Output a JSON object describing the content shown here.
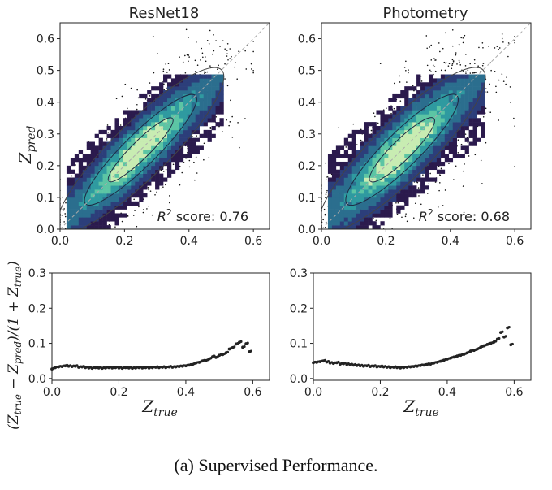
{
  "figure": {
    "caption": "(a) Supervised Performance."
  },
  "chart_data": [
    {
      "type": "scatter",
      "panel": "top-left",
      "title": "ResNet18",
      "xlabel": "",
      "ylabel_base": "Z",
      "ylabel_sub": "pred",
      "xlim": [
        0,
        0.65
      ],
      "ylim": [
        0,
        0.65
      ],
      "xticks": [
        0.0,
        0.2,
        0.4,
        0.6
      ],
      "yticks": [
        0.0,
        0.1,
        0.2,
        0.3,
        0.4,
        0.5,
        0.6
      ],
      "xtick_labels": [
        "0.0",
        "0.2",
        "0.4",
        "0.6"
      ],
      "ytick_labels": [
        "0.0",
        "0.1",
        "0.2",
        "0.3",
        "0.4",
        "0.5",
        "0.6"
      ],
      "annotation_prefix": "R",
      "annotation_sup": "2",
      "annotation_text": " score: 0.76",
      "r2": 0.76,
      "spread": 0.085,
      "diagonal": "dashed y = x",
      "colormap": [
        "#2b1a4d",
        "#2c3e7a",
        "#2b6e8e",
        "#2f9aa0",
        "#5cc5a4",
        "#c8ecb2"
      ]
    },
    {
      "type": "scatter",
      "panel": "top-right",
      "title": "Photometry",
      "xlabel": "",
      "xlim": [
        0,
        0.65
      ],
      "ylim": [
        0,
        0.65
      ],
      "xticks": [
        0.0,
        0.2,
        0.4,
        0.6
      ],
      "yticks": [
        0.0,
        0.1,
        0.2,
        0.3,
        0.4,
        0.5,
        0.6
      ],
      "xtick_labels": [
        "0.0",
        "0.2",
        "0.4",
        "0.6"
      ],
      "ytick_labels": [
        "0.0",
        "0.1",
        "0.2",
        "0.3",
        "0.4",
        "0.5",
        "0.6"
      ],
      "annotation_prefix": "R",
      "annotation_sup": "2",
      "annotation_text": " score: 0.68",
      "r2": 0.68,
      "spread": 0.1,
      "diagonal": "dashed y = x",
      "colormap": [
        "#2b1a4d",
        "#2c3e7a",
        "#2b6e8e",
        "#2f9aa0",
        "#5cc5a4",
        "#c8ecb2"
      ]
    },
    {
      "type": "scatter",
      "panel": "bottom-left",
      "xlabel_base": "Z",
      "xlabel_sub": "true",
      "ylabel": "(Ztrue − Zpred)/(1 + Ztrue)",
      "ylabel_parts": [
        "(",
        "Z",
        "true",
        " − ",
        "Z",
        "pred",
        ")/(1 + ",
        "Z",
        "true",
        ")"
      ],
      "xlim": [
        0,
        0.65
      ],
      "ylim": [
        -0.005,
        0.3
      ],
      "xticks": [
        0.0,
        0.2,
        0.4,
        0.6
      ],
      "yticks": [
        0.0,
        0.1,
        0.2,
        0.3
      ],
      "xtick_labels": [
        "0.0",
        "0.2",
        "0.4",
        "0.6"
      ],
      "ytick_labels": [
        "0.0",
        "0.1",
        "0.2",
        "0.3"
      ],
      "series": [
        {
          "name": "ResNet18",
          "x": [
            0.0,
            0.01,
            0.02,
            0.03,
            0.04,
            0.05,
            0.06,
            0.07,
            0.08,
            0.09,
            0.1,
            0.11,
            0.12,
            0.13,
            0.14,
            0.15,
            0.16,
            0.17,
            0.18,
            0.19,
            0.2,
            0.21,
            0.22,
            0.23,
            0.24,
            0.25,
            0.26,
            0.27,
            0.28,
            0.29,
            0.3,
            0.31,
            0.32,
            0.33,
            0.34,
            0.35,
            0.36,
            0.37,
            0.38,
            0.39,
            0.4,
            0.41,
            0.42,
            0.43,
            0.44,
            0.45,
            0.46,
            0.47,
            0.48,
            0.49,
            0.5,
            0.51,
            0.52,
            0.53,
            0.54,
            0.55,
            0.56,
            0.57,
            0.58,
            0.59
          ],
          "y": [
            0.027,
            0.031,
            0.033,
            0.034,
            0.036,
            0.035,
            0.034,
            0.035,
            0.032,
            0.033,
            0.031,
            0.03,
            0.029,
            0.031,
            0.03,
            0.029,
            0.03,
            0.031,
            0.03,
            0.031,
            0.03,
            0.029,
            0.031,
            0.03,
            0.029,
            0.03,
            0.031,
            0.03,
            0.031,
            0.03,
            0.031,
            0.032,
            0.031,
            0.032,
            0.031,
            0.033,
            0.032,
            0.033,
            0.034,
            0.035,
            0.036,
            0.038,
            0.04,
            0.044,
            0.046,
            0.05,
            0.051,
            0.056,
            0.062,
            0.06,
            0.066,
            0.068,
            0.073,
            0.084,
            0.088,
            0.098,
            0.103,
            0.089,
            0.099,
            0.076
          ]
        }
      ]
    },
    {
      "type": "scatter",
      "panel": "bottom-right",
      "xlabel_base": "Z",
      "xlabel_sub": "true",
      "xlim": [
        0,
        0.65
      ],
      "ylim": [
        -0.005,
        0.3
      ],
      "xticks": [
        0.0,
        0.2,
        0.4,
        0.6
      ],
      "yticks": [
        0.0,
        0.1,
        0.2,
        0.3
      ],
      "xtick_labels": [
        "0.0",
        "0.2",
        "0.4",
        "0.6"
      ],
      "ytick_labels": [
        "0.0",
        "0.1",
        "0.2",
        "0.3"
      ],
      "series": [
        {
          "name": "Photometry",
          "x": [
            0.0,
            0.01,
            0.02,
            0.03,
            0.04,
            0.05,
            0.06,
            0.07,
            0.08,
            0.09,
            0.1,
            0.11,
            0.12,
            0.13,
            0.14,
            0.15,
            0.16,
            0.17,
            0.18,
            0.19,
            0.2,
            0.21,
            0.22,
            0.23,
            0.24,
            0.25,
            0.26,
            0.27,
            0.28,
            0.29,
            0.3,
            0.31,
            0.32,
            0.33,
            0.34,
            0.35,
            0.36,
            0.37,
            0.38,
            0.39,
            0.4,
            0.41,
            0.42,
            0.43,
            0.44,
            0.45,
            0.46,
            0.47,
            0.48,
            0.49,
            0.5,
            0.51,
            0.52,
            0.53,
            0.54,
            0.55,
            0.56,
            0.57,
            0.58,
            0.59
          ],
          "y": [
            0.045,
            0.046,
            0.048,
            0.05,
            0.047,
            0.044,
            0.043,
            0.045,
            0.041,
            0.042,
            0.04,
            0.039,
            0.038,
            0.037,
            0.036,
            0.035,
            0.036,
            0.034,
            0.035,
            0.033,
            0.034,
            0.033,
            0.032,
            0.031,
            0.032,
            0.031,
            0.03,
            0.031,
            0.032,
            0.033,
            0.034,
            0.035,
            0.037,
            0.038,
            0.04,
            0.041,
            0.044,
            0.046,
            0.049,
            0.052,
            0.055,
            0.058,
            0.061,
            0.064,
            0.066,
            0.069,
            0.073,
            0.078,
            0.08,
            0.084,
            0.089,
            0.093,
            0.097,
            0.1,
            0.104,
            0.112,
            0.131,
            0.118,
            0.144,
            0.096
          ]
        }
      ]
    }
  ]
}
